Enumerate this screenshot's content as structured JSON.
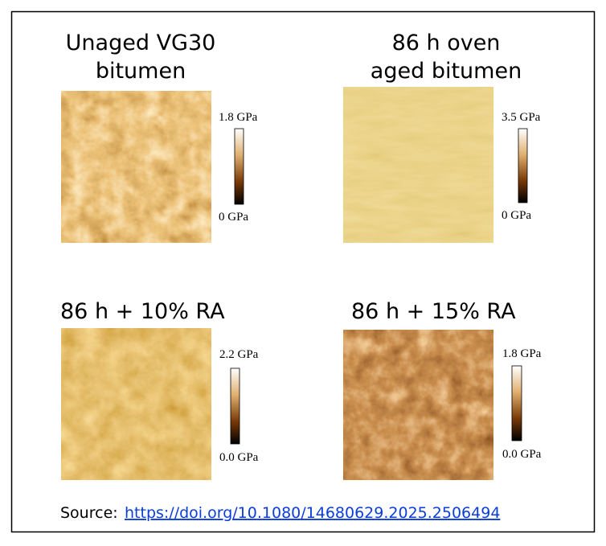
{
  "panels": [
    {
      "title": [
        "Unaged VG30",
        "bitumen"
      ],
      "scale_max": "1.8 GPa",
      "scale_min": "0 GPa"
    },
    {
      "title": [
        "86 h oven",
        "aged bitumen"
      ],
      "scale_max": "3.5 GPa",
      "scale_min": "0 GPa"
    },
    {
      "title": [
        "86 h + 10% RA"
      ],
      "scale_max": "2.2 GPa",
      "scale_min": "0.0 GPa"
    },
    {
      "title": [
        "86 h + 15% RA"
      ],
      "scale_max": "1.8 GPa",
      "scale_min": "0.0 GPa"
    }
  ],
  "source": {
    "label": "Source:",
    "link": "https://doi.org/10.1080/14680629.2025.2506494"
  }
}
